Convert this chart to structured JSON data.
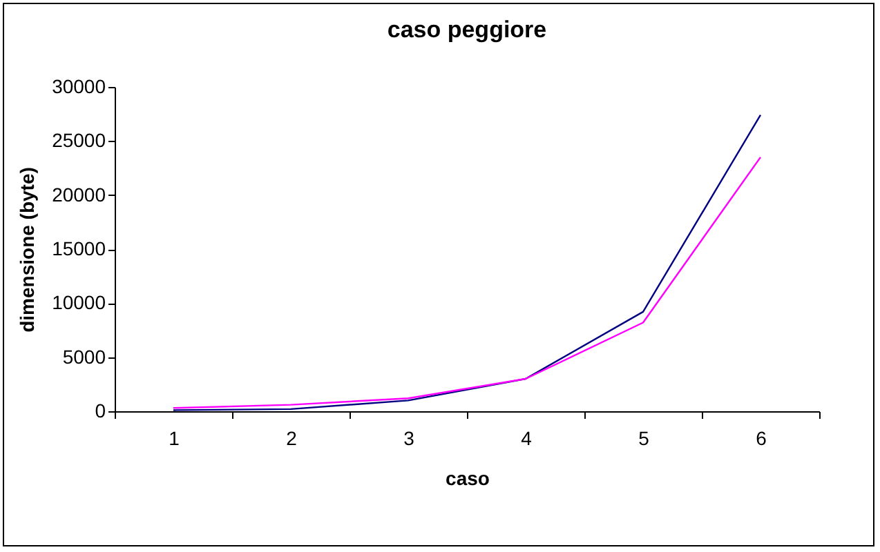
{
  "chart_data": {
    "type": "line",
    "title": "caso peggiore",
    "xlabel": "caso",
    "ylabel": "dimensione (byte)",
    "categories": [
      "1",
      "2",
      "3",
      "4",
      "5",
      "6"
    ],
    "series": [
      {
        "color": "#000080",
        "values": [
          100,
          200,
          1000,
          3000,
          9200,
          27400
        ]
      },
      {
        "color": "#ff00ff",
        "values": [
          300,
          600,
          1200,
          3000,
          8200,
          23500
        ]
      }
    ],
    "ylim": [
      0,
      30000
    ],
    "yticks": [
      0,
      5000,
      10000,
      15000,
      20000,
      25000,
      30000
    ],
    "grid": false,
    "legend": false
  }
}
